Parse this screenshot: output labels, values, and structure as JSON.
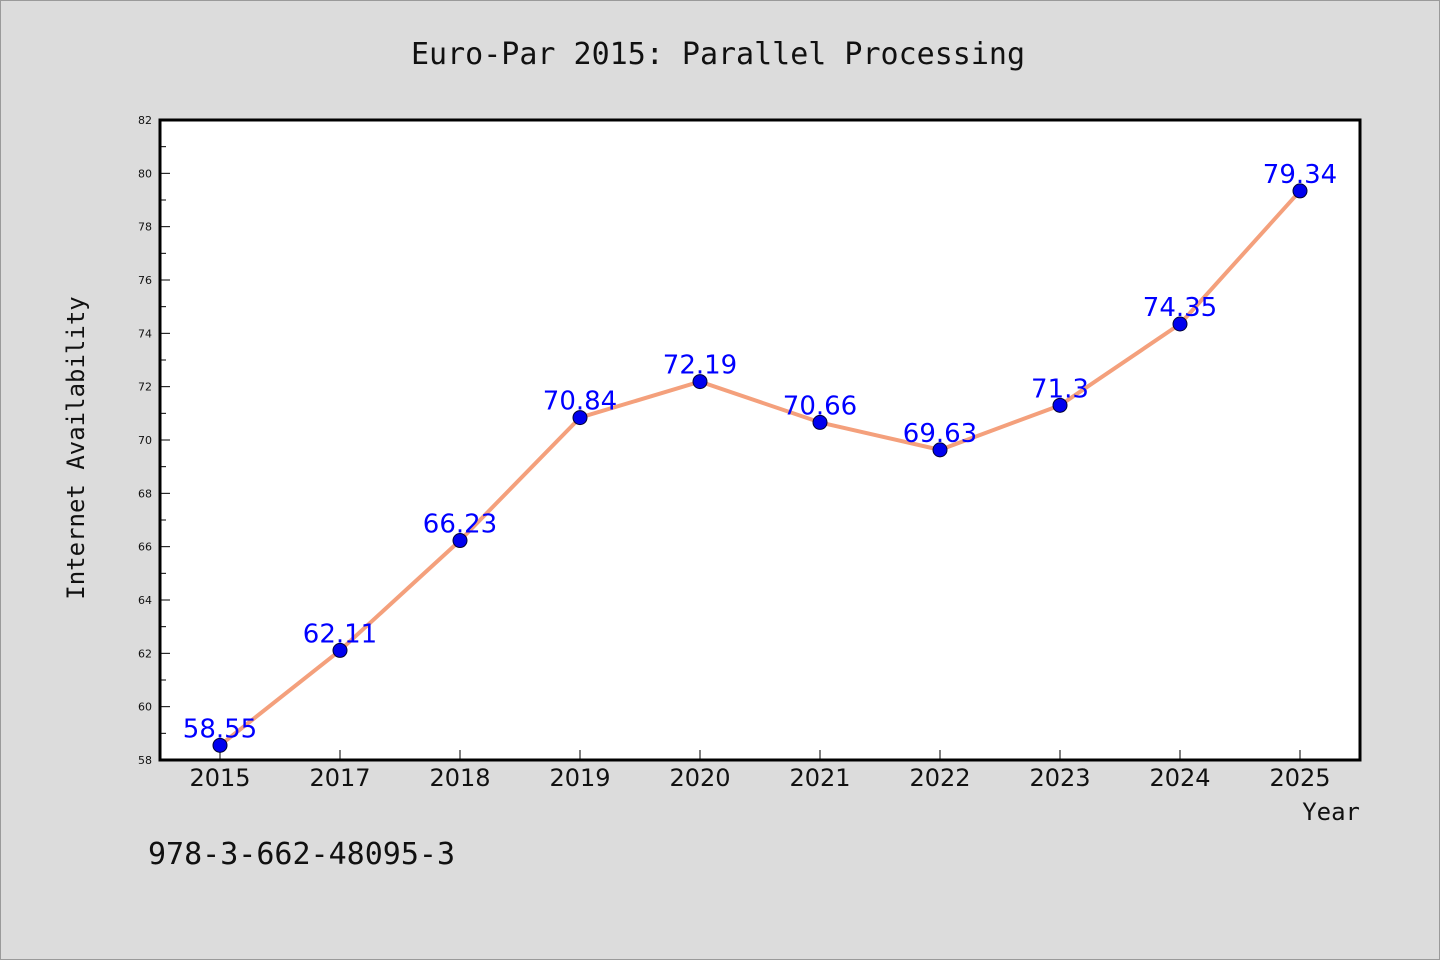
{
  "chart_data": {
    "type": "line",
    "title": "Euro-Par 2015: Parallel Processing",
    "xlabel": "Year",
    "ylabel": "Internet Availability",
    "categories": [
      "2015",
      "2017",
      "2018",
      "2019",
      "2020",
      "2021",
      "2022",
      "2023",
      "2024",
      "2025"
    ],
    "series": [
      {
        "values": [
          58.55,
          62.11,
          66.23,
          70.84,
          72.19,
          70.66,
          69.63,
          71.3,
          74.35,
          79.34
        ]
      }
    ],
    "data_labels": [
      "58.55",
      "62.11",
      "66.23",
      "70.84",
      "72.19",
      "70.66",
      "69.63",
      "71.3",
      "74.35",
      "79.34"
    ],
    "ylim": [
      58,
      82
    ],
    "yticks": [
      58,
      60,
      62,
      64,
      66,
      68,
      70,
      72,
      74,
      76,
      78,
      80,
      82
    ],
    "grid": false,
    "legend": "none",
    "colors": {
      "line": "#f4a07c",
      "marker": "#0000ee",
      "label": "#0000ff",
      "background": "#dcdcdc",
      "plot_bg": "#ffffff"
    }
  },
  "footnote": "978-3-662-48095-3"
}
